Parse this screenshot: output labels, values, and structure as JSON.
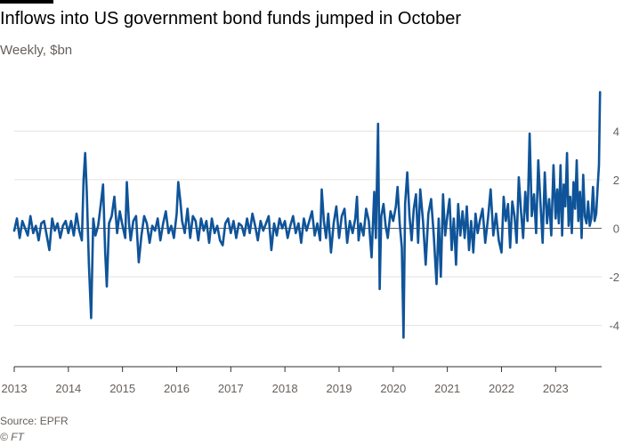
{
  "header": {
    "title": "Inflows into US government bond funds jumped in October",
    "subtitle": "Weekly, $bn"
  },
  "footer": {
    "source": "Source: EPFR",
    "copyright": "© FT"
  },
  "colors": {
    "line": "#0f5499",
    "grid": "#e6e1dc",
    "zero": "#66605c"
  },
  "chart_data": {
    "type": "line",
    "title": "Inflows into US government bond funds jumped in October",
    "subtitle": "Weekly, $bn",
    "xlabel": "",
    "ylabel": "",
    "xlim": [
      2013.0,
      2023.85
    ],
    "ylim": [
      -5.7,
      6.1
    ],
    "grid": true,
    "y_ticks": [
      -4,
      -2,
      0,
      2,
      4
    ],
    "x_ticks": [
      2013,
      2014,
      2015,
      2016,
      2017,
      2018,
      2019,
      2020,
      2021,
      2022,
      2023
    ],
    "x_tick_labels": [
      "2013",
      "2014",
      "2015",
      "2016",
      "2017",
      "2018",
      "2019",
      "2020",
      "2021",
      "2022",
      "2023"
    ],
    "series": [
      {
        "name": "",
        "points": [
          [
            2013.0,
            -0.1
          ],
          [
            2013.05,
            0.4
          ],
          [
            2013.1,
            -0.4
          ],
          [
            2013.15,
            0.3
          ],
          [
            2013.2,
            0.0
          ],
          [
            2013.25,
            -0.3
          ],
          [
            2013.3,
            0.5
          ],
          [
            2013.35,
            -0.2
          ],
          [
            2013.4,
            0.1
          ],
          [
            2013.45,
            -0.5
          ],
          [
            2013.5,
            0.2
          ],
          [
            2013.55,
            0.3
          ],
          [
            2013.6,
            -0.3
          ],
          [
            2013.65,
            -0.9
          ],
          [
            2013.7,
            0.4
          ],
          [
            2013.75,
            -0.1
          ],
          [
            2013.8,
            0.2
          ],
          [
            2013.85,
            -0.4
          ],
          [
            2013.9,
            0.1
          ],
          [
            2013.95,
            0.3
          ],
          [
            2014.0,
            -0.2
          ],
          [
            2014.05,
            0.3
          ],
          [
            2014.1,
            -0.3
          ],
          [
            2014.15,
            0.6
          ],
          [
            2014.2,
            -0.1
          ],
          [
            2014.25,
            -0.5
          ],
          [
            2014.28,
            2.0
          ],
          [
            2014.31,
            3.1
          ],
          [
            2014.34,
            1.5
          ],
          [
            2014.38,
            -1.5
          ],
          [
            2014.42,
            -3.7
          ],
          [
            2014.46,
            0.4
          ],
          [
            2014.5,
            -0.3
          ],
          [
            2014.55,
            0.1
          ],
          [
            2014.6,
            1.0
          ],
          [
            2014.64,
            1.8
          ],
          [
            2014.68,
            -1.0
          ],
          [
            2014.71,
            -2.4
          ],
          [
            2014.75,
            0.2
          ],
          [
            2014.8,
            0.5
          ],
          [
            2014.85,
            1.3
          ],
          [
            2014.9,
            -0.2
          ],
          [
            2014.95,
            0.7
          ],
          [
            2015.0,
            0.1
          ],
          [
            2015.05,
            -0.4
          ],
          [
            2015.08,
            1.9
          ],
          [
            2015.12,
            0.2
          ],
          [
            2015.15,
            -0.5
          ],
          [
            2015.2,
            0.3
          ],
          [
            2015.25,
            0.5
          ],
          [
            2015.3,
            -1.4
          ],
          [
            2015.35,
            -0.3
          ],
          [
            2015.4,
            0.5
          ],
          [
            2015.45,
            0.2
          ],
          [
            2015.5,
            -0.6
          ],
          [
            2015.55,
            0.1
          ],
          [
            2015.6,
            -0.1
          ],
          [
            2015.65,
            0.4
          ],
          [
            2015.7,
            -0.5
          ],
          [
            2015.75,
            0.2
          ],
          [
            2015.8,
            0.7
          ],
          [
            2015.85,
            -0.2
          ],
          [
            2015.9,
            0.1
          ],
          [
            2015.95,
            -0.4
          ],
          [
            2016.0,
            0.6
          ],
          [
            2016.03,
            1.9
          ],
          [
            2016.07,
            1.1
          ],
          [
            2016.1,
            0.3
          ],
          [
            2016.15,
            -0.2
          ],
          [
            2016.2,
            0.8
          ],
          [
            2016.25,
            -0.4
          ],
          [
            2016.3,
            0.5
          ],
          [
            2016.35,
            0.3
          ],
          [
            2016.4,
            -0.5
          ],
          [
            2016.45,
            0.4
          ],
          [
            2016.5,
            -0.1
          ],
          [
            2016.55,
            0.3
          ],
          [
            2016.6,
            -0.6
          ],
          [
            2016.65,
            0.4
          ],
          [
            2016.7,
            -0.2
          ],
          [
            2016.75,
            0.1
          ],
          [
            2016.8,
            -0.5
          ],
          [
            2016.85,
            -0.7
          ],
          [
            2016.9,
            0.2
          ],
          [
            2016.95,
            0.4
          ],
          [
            2017.0,
            -0.2
          ],
          [
            2017.05,
            0.3
          ],
          [
            2017.1,
            -0.4
          ],
          [
            2017.15,
            0.2
          ],
          [
            2017.2,
            0.1
          ],
          [
            2017.25,
            -0.3
          ],
          [
            2017.3,
            0.4
          ],
          [
            2017.35,
            -0.2
          ],
          [
            2017.4,
            0.6
          ],
          [
            2017.45,
            0.1
          ],
          [
            2017.5,
            -0.5
          ],
          [
            2017.55,
            0.3
          ],
          [
            2017.6,
            -0.1
          ],
          [
            2017.65,
            0.2
          ],
          [
            2017.7,
            0.5
          ],
          [
            2017.75,
            -0.9
          ],
          [
            2017.8,
            0.2
          ],
          [
            2017.85,
            -0.3
          ],
          [
            2017.9,
            0.4
          ],
          [
            2017.95,
            0.0
          ],
          [
            2018.0,
            0.3
          ],
          [
            2018.05,
            -0.4
          ],
          [
            2018.1,
            0.1
          ],
          [
            2018.15,
            0.5
          ],
          [
            2018.2,
            -0.2
          ],
          [
            2018.25,
            0.2
          ],
          [
            2018.3,
            -0.6
          ],
          [
            2018.35,
            0.4
          ],
          [
            2018.4,
            -0.1
          ],
          [
            2018.45,
            0.3
          ],
          [
            2018.5,
            0.7
          ],
          [
            2018.55,
            -0.3
          ],
          [
            2018.6,
            0.2
          ],
          [
            2018.65,
            -0.5
          ],
          [
            2018.68,
            1.6
          ],
          [
            2018.72,
            0.3
          ],
          [
            2018.76,
            -0.4
          ],
          [
            2018.8,
            0.6
          ],
          [
            2018.85,
            -1.0
          ],
          [
            2018.9,
            0.2
          ],
          [
            2018.95,
            0.9
          ],
          [
            2019.0,
            -0.4
          ],
          [
            2019.05,
            0.5
          ],
          [
            2019.1,
            0.8
          ],
          [
            2019.15,
            -0.6
          ],
          [
            2019.2,
            0.3
          ],
          [
            2019.25,
            -0.2
          ],
          [
            2019.3,
            0.4
          ],
          [
            2019.33,
            1.3
          ],
          [
            2019.36,
            -0.5
          ],
          [
            2019.4,
            0.2
          ],
          [
            2019.45,
            -0.3
          ],
          [
            2019.5,
            0.8
          ],
          [
            2019.55,
            0.3
          ],
          [
            2019.6,
            -1.2
          ],
          [
            2019.65,
            1.5
          ],
          [
            2019.68,
            -0.4
          ],
          [
            2019.72,
            4.3
          ],
          [
            2019.75,
            -2.5
          ],
          [
            2019.78,
            0.5
          ],
          [
            2019.82,
            1.0
          ],
          [
            2019.86,
            0.1
          ],
          [
            2019.9,
            -0.4
          ],
          [
            2019.95,
            0.7
          ],
          [
            2020.0,
            0.3
          ],
          [
            2020.05,
            0.9
          ],
          [
            2020.08,
            1.7
          ],
          [
            2020.12,
            0.2
          ],
          [
            2020.16,
            -0.8
          ],
          [
            2020.19,
            -4.5
          ],
          [
            2020.22,
            1.0
          ],
          [
            2020.26,
            2.3
          ],
          [
            2020.3,
            0.5
          ],
          [
            2020.34,
            -0.5
          ],
          [
            2020.38,
            0.8
          ],
          [
            2020.42,
            1.4
          ],
          [
            2020.46,
            -0.6
          ],
          [
            2020.5,
            1.6
          ],
          [
            2020.55,
            0.3
          ],
          [
            2020.6,
            -1.5
          ],
          [
            2020.65,
            0.6
          ],
          [
            2020.7,
            1.2
          ],
          [
            2020.75,
            -0.3
          ],
          [
            2020.8,
            -2.3
          ],
          [
            2020.84,
            0.4
          ],
          [
            2020.88,
            -2.0
          ],
          [
            2020.92,
            1.4
          ],
          [
            2020.96,
            -0.3
          ],
          [
            2021.0,
            0.5
          ],
          [
            2021.04,
            1.2
          ],
          [
            2021.08,
            -0.9
          ],
          [
            2021.12,
            0.4
          ],
          [
            2021.16,
            -1.5
          ],
          [
            2021.2,
            1.0
          ],
          [
            2021.24,
            -0.3
          ],
          [
            2021.28,
            0.7
          ],
          [
            2021.32,
            -0.4
          ],
          [
            2021.36,
            0.9
          ],
          [
            2021.4,
            -0.9
          ],
          [
            2021.44,
            0.3
          ],
          [
            2021.48,
            -1.0
          ],
          [
            2021.52,
            0.6
          ],
          [
            2021.56,
            -0.2
          ],
          [
            2021.6,
            0.3
          ],
          [
            2021.65,
            0.8
          ],
          [
            2021.7,
            -0.6
          ],
          [
            2021.75,
            0.4
          ],
          [
            2021.8,
            1.6
          ],
          [
            2021.85,
            -0.3
          ],
          [
            2021.9,
            0.6
          ],
          [
            2021.95,
            -0.5
          ],
          [
            2022.0,
            -1.0
          ],
          [
            2022.04,
            1.3
          ],
          [
            2022.08,
            0.3
          ],
          [
            2022.12,
            1.0
          ],
          [
            2022.16,
            -0.8
          ],
          [
            2022.2,
            1.1
          ],
          [
            2022.24,
            0.5
          ],
          [
            2022.28,
            -0.6
          ],
          [
            2022.32,
            2.1
          ],
          [
            2022.36,
            0.7
          ],
          [
            2022.4,
            -0.4
          ],
          [
            2022.44,
            1.5
          ],
          [
            2022.48,
            0.3
          ],
          [
            2022.52,
            3.9
          ],
          [
            2022.56,
            0.5
          ],
          [
            2022.6,
            1.4
          ],
          [
            2022.64,
            -0.2
          ],
          [
            2022.68,
            2.8
          ],
          [
            2022.72,
            1.0
          ],
          [
            2022.76,
            -0.6
          ],
          [
            2022.8,
            2.3
          ],
          [
            2022.84,
            0.2
          ],
          [
            2022.88,
            1.2
          ],
          [
            2022.92,
            -0.3
          ],
          [
            2022.96,
            2.6
          ],
          [
            2023.0,
            0.4
          ],
          [
            2023.03,
            1.6
          ],
          [
            2023.06,
            0.2
          ],
          [
            2023.09,
            2.6
          ],
          [
            2023.12,
            -0.3
          ],
          [
            2023.15,
            1.8
          ],
          [
            2023.18,
            0.9
          ],
          [
            2023.21,
            3.1
          ],
          [
            2023.24,
            0.1
          ],
          [
            2023.27,
            1.3
          ],
          [
            2023.3,
            -0.2
          ],
          [
            2023.33,
            1.9
          ],
          [
            2023.36,
            0.8
          ],
          [
            2023.39,
            2.8
          ],
          [
            2023.42,
            0.3
          ],
          [
            2023.45,
            1.5
          ],
          [
            2023.48,
            -0.4
          ],
          [
            2023.51,
            2.2
          ],
          [
            2023.54,
            0.5
          ],
          [
            2023.57,
            0.2
          ],
          [
            2023.6,
            1.1
          ],
          [
            2023.63,
            0.1
          ],
          [
            2023.66,
            0.4
          ],
          [
            2023.69,
            1.7
          ],
          [
            2023.72,
            0.3
          ],
          [
            2023.75,
            0.6
          ],
          [
            2023.78,
            1.8
          ],
          [
            2023.8,
            2.6
          ],
          [
            2023.82,
            5.6
          ]
        ]
      }
    ]
  }
}
